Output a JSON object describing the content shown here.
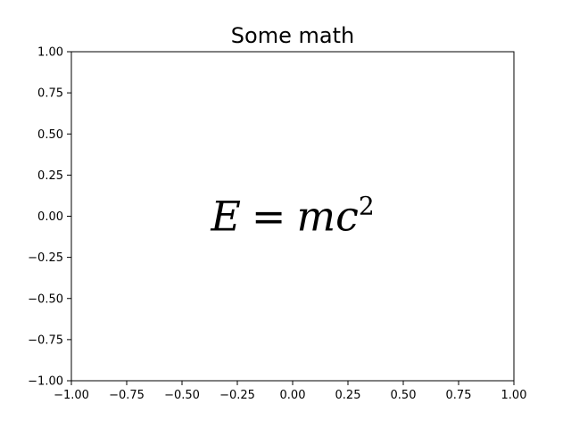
{
  "chart_data": {
    "type": "scatter",
    "title": "Some math",
    "xlabel": "",
    "ylabel": "",
    "xlim": [
      -1.0,
      1.0
    ],
    "ylim": [
      -1.0,
      1.0
    ],
    "x_ticks": [
      -1.0,
      -0.75,
      -0.5,
      -0.25,
      0.0,
      0.25,
      0.5,
      0.75,
      1.0
    ],
    "x_tick_labels": [
      "−1.00",
      "−0.75",
      "−0.50",
      "−0.25",
      "0.00",
      "0.25",
      "0.50",
      "0.75",
      "1.00"
    ],
    "y_ticks": [
      1.0,
      0.75,
      0.5,
      0.25,
      0.0,
      -0.25,
      -0.5,
      -0.75,
      -1.0
    ],
    "y_tick_labels": [
      "1.00",
      "0.75",
      "0.50",
      "0.25",
      "0.00",
      "−0.25",
      "−0.50",
      "−0.75",
      "−1.00"
    ],
    "grid": false,
    "annotations": [
      {
        "x": 0.0,
        "y": 0.0,
        "base": "E",
        "equals": "=",
        "variable": "mc",
        "exponent": "2"
      }
    ]
  }
}
